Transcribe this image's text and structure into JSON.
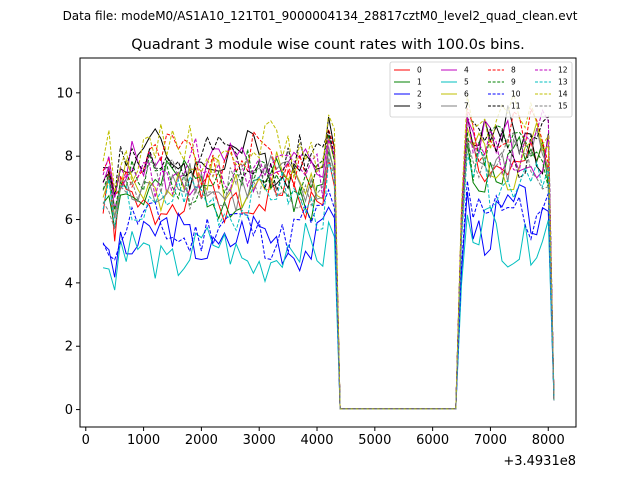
{
  "chart_data": {
    "type": "line",
    "suptitle": "Data file: modeM0/AS1A10_121T01_9000004134_28817cztM0_level2_quad_clean.evt",
    "title": "Quadrant 3 module wise count rates with 100.0s bins.",
    "xlabel": "",
    "ylabel": "",
    "x_offset_label": "+3.4931e8",
    "xlim": [
      -100,
      8480
    ],
    "ylim": [
      -0.55,
      11.1
    ],
    "x_ticks": [
      0,
      1000,
      2000,
      3000,
      4000,
      5000,
      6000,
      7000,
      8000
    ],
    "y_ticks": [
      0,
      2,
      4,
      6,
      8,
      10
    ],
    "x_tick_labels": [
      "0",
      "1000",
      "2000",
      "3000",
      "4000",
      "5000",
      "6000",
      "7000",
      "8000"
    ],
    "y_tick_labels": [
      "0",
      "2",
      "4",
      "6",
      "8",
      "10"
    ],
    "legend_position": "top-right",
    "bin_seconds": 100,
    "x": [
      300,
      400,
      500,
      600,
      700,
      800,
      900,
      1000,
      1100,
      1200,
      1300,
      1400,
      1500,
      1600,
      1700,
      1800,
      1900,
      2000,
      2100,
      2200,
      2300,
      2400,
      2500,
      2600,
      2700,
      2800,
      2900,
      3000,
      3100,
      3200,
      3300,
      3400,
      3500,
      3600,
      3700,
      3800,
      3900,
      4000,
      4100,
      4200,
      4300,
      4400,
      6400,
      6500,
      6600,
      6700,
      6800,
      6900,
      7000,
      7100,
      7200,
      7300,
      7400,
      7500,
      7600,
      7700,
      7800,
      7900,
      8000,
      8100
    ],
    "series": [
      {
        "name": "0",
        "color": "#ff0000",
        "dash": "solid",
        "level": 6.6,
        "post": 7.6
      },
      {
        "name": "1",
        "color": "#008000",
        "dash": "solid",
        "level": 7.0,
        "post": 7.8
      },
      {
        "name": "2",
        "color": "#0000ff",
        "dash": "solid",
        "level": 5.4,
        "post": 6.0
      },
      {
        "name": "3",
        "color": "#000000",
        "dash": "solid",
        "level": 7.9,
        "post": 8.6
      },
      {
        "name": "4",
        "color": "#bf00bf",
        "dash": "solid",
        "level": 7.5,
        "post": 8.3
      },
      {
        "name": "5",
        "color": "#00bfbf",
        "dash": "solid",
        "level": 4.9,
        "post": 5.5
      },
      {
        "name": "6",
        "color": "#bfbf00",
        "dash": "solid",
        "level": 7.2,
        "post": 8.0
      },
      {
        "name": "7",
        "color": "#808080",
        "dash": "solid",
        "level": 7.1,
        "post": 7.9
      },
      {
        "name": "8",
        "color": "#ff0000",
        "dash": "dashed",
        "level": 7.8,
        "post": 8.6
      },
      {
        "name": "9",
        "color": "#008000",
        "dash": "dashed",
        "level": 7.3,
        "post": 8.1
      },
      {
        "name": "10",
        "color": "#0000ff",
        "dash": "dashed",
        "level": 5.7,
        "post": 6.3
      },
      {
        "name": "11",
        "color": "#000000",
        "dash": "dashed",
        "level": 7.7,
        "post": 8.5
      },
      {
        "name": "12",
        "color": "#bf00bf",
        "dash": "dashed",
        "level": 7.6,
        "post": 8.4
      },
      {
        "name": "13",
        "color": "#00bfbf",
        "dash": "dashed",
        "level": 6.6,
        "post": 7.4
      },
      {
        "name": "14",
        "color": "#bfbf00",
        "dash": "dashed",
        "level": 8.2,
        "post": 9.0
      },
      {
        "name": "15",
        "color": "#808080",
        "dash": "dashed",
        "level": 7.0,
        "post": 7.8
      }
    ]
  }
}
